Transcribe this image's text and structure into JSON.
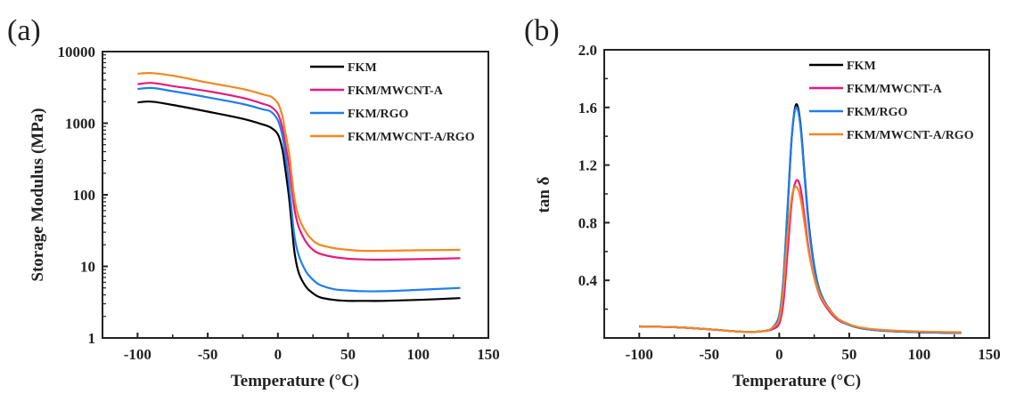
{
  "chart_data": [
    {
      "panel": "(a)",
      "type": "line",
      "title": "",
      "xlabel": "Temperature (°C)",
      "ylabel": "Storage Modulus (MPa)",
      "xlim": [
        -125,
        150
      ],
      "ylim": [
        1,
        10000
      ],
      "yscale": "log",
      "xticks": [
        -100,
        -50,
        0,
        50,
        100,
        150
      ],
      "xtick_labels": [
        "-100",
        "-50",
        "0",
        "50",
        "100",
        "150"
      ],
      "yticks": [
        1,
        10,
        100,
        1000,
        10000
      ],
      "ytick_labels": [
        "1",
        "10",
        "100",
        "1000",
        "10000"
      ],
      "grid": false,
      "legend_position": "top-right",
      "x": [
        -100,
        -90,
        -75,
        -50,
        -25,
        -10,
        -5,
        0,
        3,
        5,
        8,
        10,
        12,
        15,
        20,
        25,
        30,
        40,
        50,
        60,
        75,
        100,
        130
      ],
      "series": [
        {
          "name": "FKM",
          "color": "#000000",
          "values": [
            1950,
            2000,
            1800,
            1450,
            1150,
            950,
            870,
            700,
            450,
            250,
            90,
            35,
            15,
            8,
            5.2,
            4.2,
            3.7,
            3.4,
            3.3,
            3.3,
            3.3,
            3.4,
            3.6
          ]
        },
        {
          "name": "FKM/MWCNT-A",
          "color": "#e8197d",
          "values": [
            3500,
            3650,
            3300,
            2800,
            2250,
            1850,
            1700,
            1350,
            900,
            550,
            250,
            120,
            60,
            35,
            22,
            17,
            15,
            13.5,
            12.8,
            12.5,
            12.4,
            12.6,
            13
          ]
        },
        {
          "name": "FKM/RGO",
          "color": "#1e7ef0",
          "values": [
            3000,
            3100,
            2800,
            2300,
            1850,
            1550,
            1450,
            1100,
            700,
            400,
            140,
            55,
            25,
            14,
            8.5,
            6.5,
            5.5,
            4.8,
            4.6,
            4.5,
            4.5,
            4.7,
            5
          ]
        },
        {
          "name": "FKM/MWCNT-A/RGO",
          "color": "#f5861f",
          "values": [
            4900,
            5000,
            4600,
            3700,
            3000,
            2500,
            2350,
            1900,
            1300,
            800,
            380,
            170,
            85,
            48,
            30,
            23,
            20,
            18,
            17,
            16.5,
            16.5,
            16.8,
            17
          ]
        }
      ]
    },
    {
      "panel": "(b)",
      "type": "line",
      "title": "",
      "xlabel": "Temperature (°C)",
      "ylabel": "tan δ",
      "xlim": [
        -125,
        150
      ],
      "ylim": [
        0,
        2.0
      ],
      "yscale": "linear",
      "xticks": [
        -100,
        -50,
        0,
        50,
        100,
        150
      ],
      "xtick_labels": [
        "-100",
        "-50",
        "0",
        "50",
        "100",
        "150"
      ],
      "yticks": [
        0.4,
        0.8,
        1.2,
        1.6,
        2.0
      ],
      "ytick_labels": [
        "0.4",
        "0.8",
        "1.2",
        "1.6",
        "2.0"
      ],
      "grid": false,
      "legend_position": "top-right",
      "x": [
        -100,
        -75,
        -50,
        -30,
        -20,
        -10,
        -5,
        0,
        3,
        6,
        9,
        12,
        15,
        18,
        21,
        25,
        30,
        40,
        50,
        60,
        75,
        100,
        130
      ],
      "series": [
        {
          "name": "FKM",
          "color": "#000000",
          "values": [
            0.08,
            0.075,
            0.06,
            0.045,
            0.042,
            0.05,
            0.07,
            0.15,
            0.4,
            0.9,
            1.4,
            1.62,
            1.5,
            1.15,
            0.8,
            0.5,
            0.3,
            0.15,
            0.09,
            0.065,
            0.05,
            0.04,
            0.035
          ]
        },
        {
          "name": "FKM/MWCNT-A",
          "color": "#e8197d",
          "values": [
            0.08,
            0.075,
            0.06,
            0.045,
            0.042,
            0.048,
            0.06,
            0.1,
            0.25,
            0.6,
            0.95,
            1.09,
            1.05,
            0.85,
            0.62,
            0.42,
            0.27,
            0.14,
            0.09,
            0.065,
            0.05,
            0.04,
            0.035
          ]
        },
        {
          "name": "FKM/RGO",
          "color": "#1e7ef0",
          "values": [
            0.08,
            0.075,
            0.06,
            0.045,
            0.042,
            0.05,
            0.07,
            0.16,
            0.42,
            0.92,
            1.4,
            1.6,
            1.48,
            1.13,
            0.78,
            0.49,
            0.3,
            0.15,
            0.09,
            0.065,
            0.05,
            0.04,
            0.035
          ]
        },
        {
          "name": "FKM/MWCNT-A/RGO",
          "color": "#f5861f",
          "values": [
            0.08,
            0.075,
            0.06,
            0.045,
            0.042,
            0.05,
            0.07,
            0.13,
            0.35,
            0.72,
            0.98,
            1.05,
            0.98,
            0.8,
            0.6,
            0.42,
            0.28,
            0.15,
            0.095,
            0.07,
            0.055,
            0.045,
            0.04
          ]
        }
      ]
    }
  ]
}
